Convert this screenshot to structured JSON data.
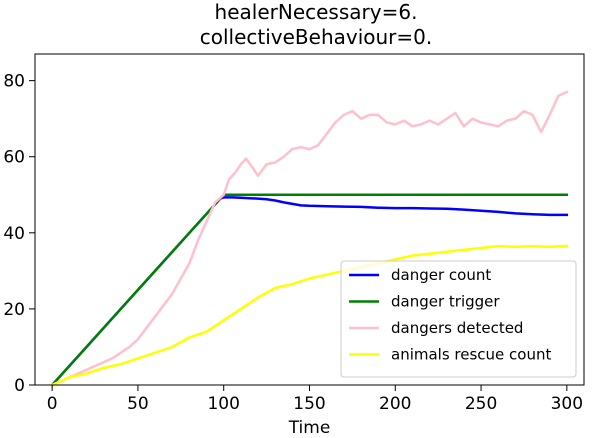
{
  "chart_data": {
    "type": "line",
    "title_lines": [
      "healerNecessary=6.",
      "collectiveBehaviour=0."
    ],
    "xlabel": "Time",
    "ylabel": "",
    "xlim": [
      -10,
      310
    ],
    "ylim": [
      0,
      87
    ],
    "xticks": [
      0,
      50,
      100,
      150,
      200,
      250,
      300
    ],
    "yticks": [
      0,
      20,
      40,
      60,
      80
    ],
    "grid": false,
    "legend_position": "lower-right",
    "series": [
      {
        "name": "danger count",
        "color": "#0000ff",
        "x": [
          0,
          10,
          20,
          30,
          40,
          50,
          60,
          70,
          80,
          90,
          98,
          100,
          105,
          110,
          115,
          120,
          125,
          130,
          135,
          140,
          145,
          150,
          160,
          170,
          180,
          190,
          200,
          210,
          220,
          230,
          240,
          250,
          260,
          270,
          280,
          290,
          300
        ],
        "y": [
          0,
          5,
          10,
          15,
          20,
          25,
          30,
          35,
          40,
          45,
          49,
          49.3,
          49.3,
          49.2,
          49.1,
          49,
          48.8,
          48.5,
          48,
          47.6,
          47.2,
          47.1,
          47,
          46.9,
          46.8,
          46.6,
          46.5,
          46.5,
          46.4,
          46.3,
          46.1,
          45.8,
          45.5,
          45.1,
          44.9,
          44.7,
          44.7
        ]
      },
      {
        "name": "danger trigger",
        "color": "#008000",
        "x": [
          0,
          100,
          300
        ],
        "y": [
          0,
          50,
          50
        ]
      },
      {
        "name": "dangers detected",
        "color": "#ffc0cb",
        "x": [
          0,
          5,
          10,
          15,
          20,
          25,
          30,
          35,
          40,
          45,
          50,
          55,
          60,
          65,
          70,
          75,
          80,
          85,
          90,
          95,
          100,
          103,
          107,
          110,
          113,
          117,
          120,
          125,
          130,
          135,
          140,
          145,
          150,
          155,
          160,
          165,
          170,
          175,
          180,
          185,
          190,
          195,
          200,
          205,
          210,
          215,
          220,
          225,
          230,
          235,
          240,
          245,
          250,
          255,
          260,
          265,
          270,
          275,
          280,
          285,
          290,
          295,
          300
        ],
        "y": [
          0,
          1,
          2,
          3,
          4,
          5,
          6,
          7,
          8.5,
          10,
          12,
          15,
          18,
          21,
          24,
          28,
          32,
          38,
          43,
          48,
          50,
          54,
          56,
          58,
          59.5,
          57,
          55,
          58,
          58.5,
          60,
          62,
          62.5,
          62,
          63,
          66,
          69,
          71,
          72,
          70,
          71,
          71,
          69,
          68.5,
          69.5,
          68,
          68.5,
          69.5,
          68.5,
          70,
          71.5,
          68,
          70,
          69,
          68.5,
          68,
          69.5,
          70,
          72,
          71,
          66.5,
          71,
          76,
          77
        ]
      },
      {
        "name": "animals rescue count",
        "color": "#ffff00",
        "x": [
          0,
          10,
          20,
          30,
          40,
          50,
          60,
          70,
          80,
          90,
          100,
          110,
          120,
          130,
          140,
          150,
          160,
          170,
          180,
          190,
          200,
          210,
          220,
          230,
          240,
          250,
          260,
          270,
          280,
          290,
          300
        ],
        "y": [
          0,
          2,
          3,
          4.5,
          5.5,
          7,
          8.5,
          10,
          12.5,
          14,
          17,
          20,
          23,
          25.5,
          26.5,
          28,
          29,
          30,
          31,
          32,
          33,
          34,
          34.5,
          35,
          35.5,
          36,
          36.5,
          36.3,
          36.5,
          36.3,
          36.6
        ]
      }
    ]
  }
}
